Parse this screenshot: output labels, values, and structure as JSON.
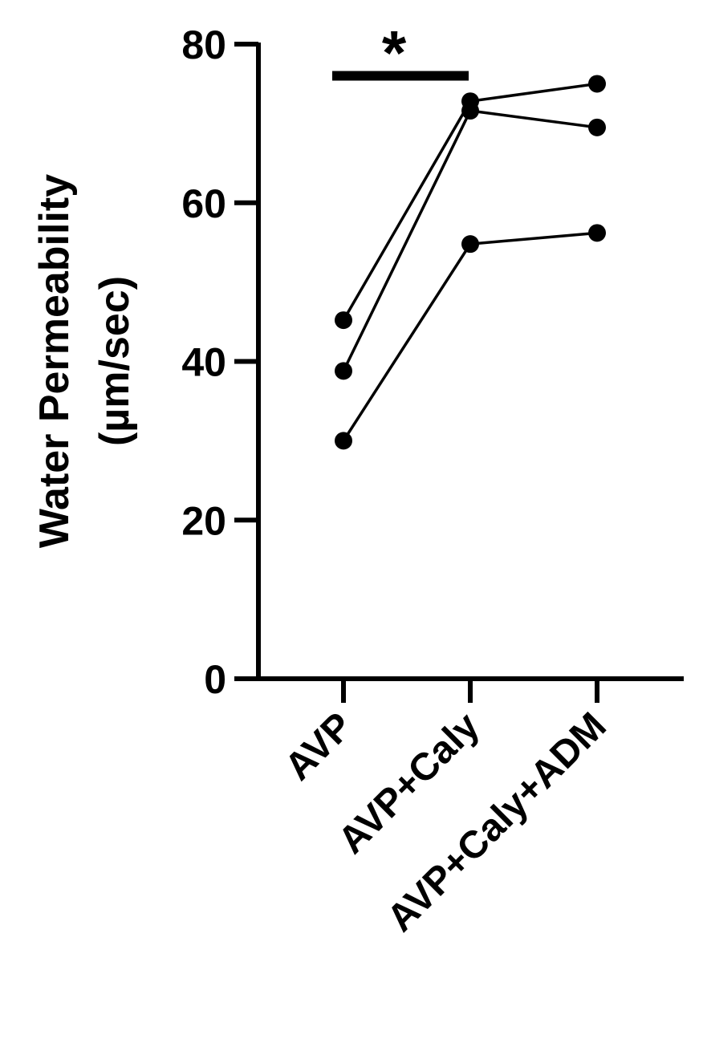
{
  "chart_data": {
    "type": "line",
    "title": "",
    "ylabel_line1": "Water Permeability",
    "ylabel_line2": "(µm/sec)",
    "xlabel": "",
    "categories": [
      "AVP",
      "AVP+Caly",
      "AVP+Caly+ADM"
    ],
    "ylim": [
      0,
      80
    ],
    "yticks": [
      0,
      20,
      40,
      60,
      80
    ],
    "ytick_labels": [
      "0",
      "20",
      "40",
      "60",
      "80"
    ],
    "grid": false,
    "legend": "none",
    "series": [
      {
        "values": [
          45.2,
          72.8,
          75.0
        ]
      },
      {
        "values": [
          38.8,
          71.6,
          69.5
        ]
      },
      {
        "values": [
          30.0,
          54.8,
          56.2
        ]
      }
    ],
    "significance": [
      {
        "label": "*",
        "from": 0,
        "to": 1,
        "y": 76
      }
    ],
    "colors": {
      "line": "#000000",
      "marker": "#000000"
    }
  }
}
